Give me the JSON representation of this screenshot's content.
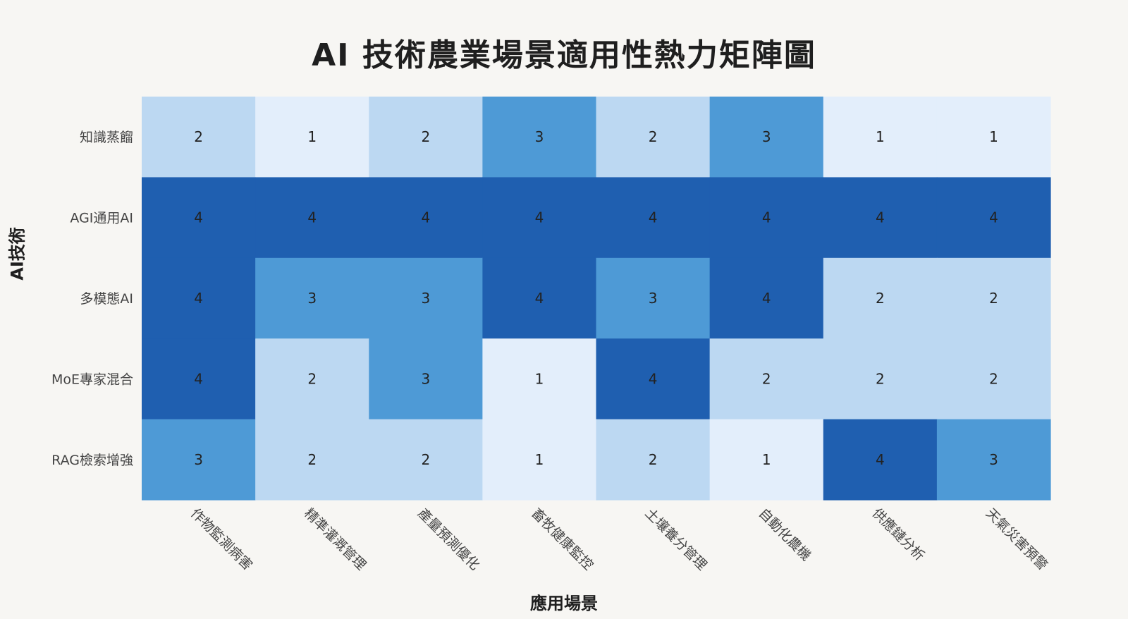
{
  "chart_data": {
    "type": "heatmap",
    "title": "AI 技術農業場景適用性熱力矩陣圖",
    "xlabel": "應用場景",
    "ylabel": "AI技術",
    "x_categories": [
      "作物監測病害",
      "精準灌溉管理",
      "產量預測優化",
      "畜牧健康監控",
      "土壤養分管理",
      "自動化農機",
      "供應鏈分析",
      "天氣災害預警"
    ],
    "y_categories": [
      "知識蒸餾",
      "AGI通用AI",
      "多模態AI",
      "MoE專家混合",
      "RAG檢索增強"
    ],
    "values": [
      [
        2,
        1,
        2,
        3,
        2,
        3,
        1,
        1
      ],
      [
        4,
        4,
        4,
        4,
        4,
        4,
        4,
        4
      ],
      [
        4,
        3,
        3,
        4,
        3,
        4,
        2,
        2
      ],
      [
        4,
        2,
        3,
        1,
        4,
        2,
        2,
        2
      ],
      [
        3,
        2,
        2,
        1,
        2,
        1,
        4,
        3
      ]
    ],
    "value_range": [
      1,
      4
    ],
    "colors": {
      "1": "#e3eefb",
      "2": "#bcd8f2",
      "3": "#4e9ad6",
      "4": "#1f5fb0"
    },
    "cell_labels": true,
    "grid": false,
    "legend": "none"
  }
}
